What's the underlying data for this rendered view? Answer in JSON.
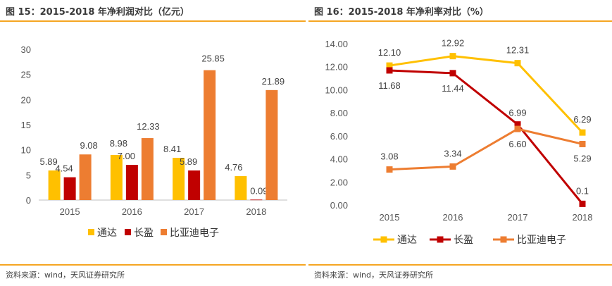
{
  "left": {
    "title": "图 15：2015-2018 年净利润对比（亿元）",
    "source": "资料来源：wind，天风证券研究所"
  },
  "right": {
    "title": "图 16：2015-2018 年净利率对比（%）",
    "source": "资料来源：wind，天风证券研究所"
  },
  "colors": {
    "accent": "#f5a623",
    "tongda": "#ffc000",
    "changying": "#c00000",
    "byd": "#ed7d31"
  },
  "chart_data": [
    {
      "type": "bar",
      "title": "图 15：2015-2018 年净利润对比（亿元）",
      "categories": [
        "2015",
        "2016",
        "2017",
        "2018"
      ],
      "series": [
        {
          "name": "通达",
          "color": "#ffc000",
          "values": [
            5.89,
            8.98,
            8.41,
            4.76
          ]
        },
        {
          "name": "长盈",
          "color": "#c00000",
          "values": [
            4.54,
            7.0,
            5.89,
            0.09
          ]
        },
        {
          "name": "比亚迪电子",
          "color": "#ed7d31",
          "values": [
            9.08,
            12.33,
            25.85,
            21.89
          ]
        }
      ],
      "value_labels": [
        [
          "5.89",
          "8.98",
          "8.41",
          "4.76"
        ],
        [
          "4.54",
          "7.00",
          "5.89",
          "0.09"
        ],
        [
          "9.08",
          "12.33",
          "25.85",
          "21.89"
        ]
      ],
      "ylim": [
        0,
        30
      ],
      "yticks": [
        "0",
        "5",
        "10",
        "15",
        "20",
        "25",
        "30"
      ],
      "grid": false,
      "legend": "bottom"
    },
    {
      "type": "line",
      "title": "图 16：2015-2018 年净利率对比（%）",
      "categories": [
        "2015",
        "2016",
        "2017",
        "2018"
      ],
      "series": [
        {
          "name": "通达",
          "color": "#ffc000",
          "values": [
            12.1,
            12.92,
            12.31,
            6.29
          ]
        },
        {
          "name": "长盈",
          "color": "#c00000",
          "values": [
            11.68,
            11.44,
            6.99,
            0.1
          ]
        },
        {
          "name": "比亚迪电子",
          "color": "#ed7d31",
          "values": [
            3.08,
            3.34,
            6.6,
            5.29
          ]
        }
      ],
      "value_labels": [
        [
          "12.10",
          "12.92",
          "12.31",
          "6.29"
        ],
        [
          "11.68",
          "11.44",
          "6.99",
          "0.1"
        ],
        [
          "3.08",
          "3.34",
          "6.60",
          "5.29"
        ]
      ],
      "ylim": [
        0,
        14
      ],
      "yticks": [
        "0.00",
        "2.00",
        "4.00",
        "6.00",
        "8.00",
        "10.00",
        "12.00",
        "14.00"
      ],
      "grid": false,
      "legend": "bottom"
    }
  ]
}
